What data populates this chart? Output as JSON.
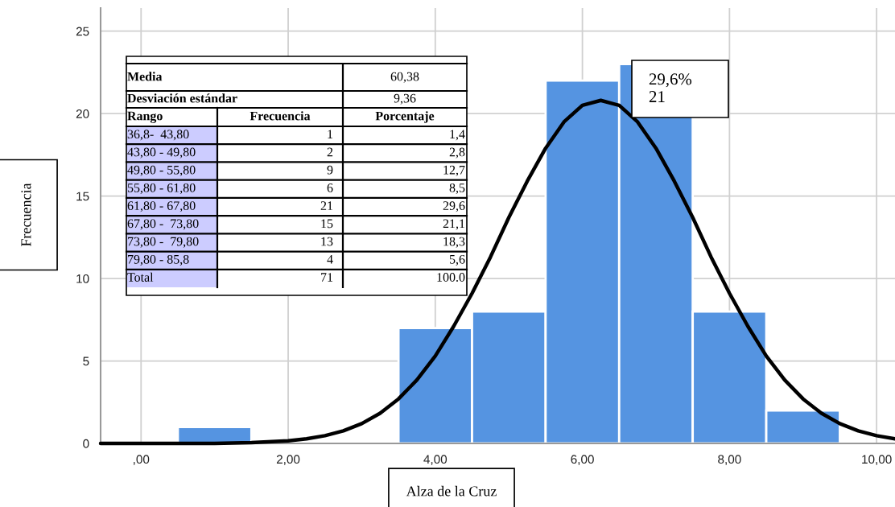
{
  "chart_data": {
    "type": "histogram",
    "xlabel": "Alza de la Cruz",
    "ylabel": "Frecuencia",
    "series": [
      {
        "color": "#5594e1",
        "bins": [
          0.5,
          1.5,
          2.5,
          3.5,
          4.5,
          5.5,
          6.5,
          7.5,
          8.5,
          9.5
        ],
        "values": [
          1,
          0,
          0,
          7,
          8,
          22,
          23,
          8,
          2
        ]
      },
      {
        "type": "line",
        "color": "#000000",
        "x": [
          -0.55,
          0.5,
          1.0,
          1.5,
          2.0,
          2.25,
          2.5,
          2.75,
          3.0,
          3.25,
          3.5,
          3.75,
          4.0,
          4.25,
          4.5,
          4.75,
          5.0,
          5.25,
          5.5,
          5.75,
          6.0,
          6.25,
          6.5,
          6.75,
          7.0,
          7.25,
          7.5,
          7.75,
          8.0,
          8.25,
          8.5,
          8.75,
          9.0,
          9.25,
          9.5,
          9.75,
          10.0,
          10.25
        ],
        "values": [
          0,
          0,
          0,
          0.05,
          0.16,
          0.28,
          0.47,
          0.76,
          1.2,
          1.83,
          2.7,
          3.85,
          5.3,
          7.1,
          9.1,
          11.3,
          13.7,
          15.9,
          17.9,
          19.5,
          20.5,
          20.8,
          20.5,
          19.5,
          17.9,
          15.9,
          13.7,
          11.3,
          9.1,
          7.1,
          5.3,
          3.85,
          2.7,
          1.83,
          1.2,
          0.76,
          0.47,
          0.28
        ]
      }
    ],
    "xlim": [
      -0.55,
      10.25
    ],
    "ylim": [
      0,
      26.4
    ],
    "xticks": [
      {
        "value": 0,
        "label": ",00"
      },
      {
        "value": 2,
        "label": "2,00"
      },
      {
        "value": 4,
        "label": "4,00"
      },
      {
        "value": 6,
        "label": "6,00"
      },
      {
        "value": 8,
        "label": "8,00"
      },
      {
        "value": 10,
        "label": "10,00"
      }
    ],
    "yticks": [
      0,
      5,
      10,
      15,
      20,
      25
    ],
    "grid": true,
    "annotations": [
      "Media",
      "60,38",
      "Desviación estándar",
      "9,36",
      "Rango",
      "Frecuencia",
      "Porcentaje",
      "36,8-  43,80",
      "1",
      "1,4",
      "43,80 - 49,80",
      "2",
      "2,8",
      "49,80 - 55,80",
      "9",
      "12,7",
      "55,80 - 61,80",
      "6",
      "8,5",
      "61,80 - 67,80",
      "21",
      "29,6",
      "67,80 -  73,80",
      "15",
      "21,1",
      "73,80 -  79,80",
      "13",
      "18,3",
      "79,80 - 85,8",
      "4",
      "5,6",
      "Total",
      "71",
      "100.0",
      "29,6%\n21"
    ]
  }
}
